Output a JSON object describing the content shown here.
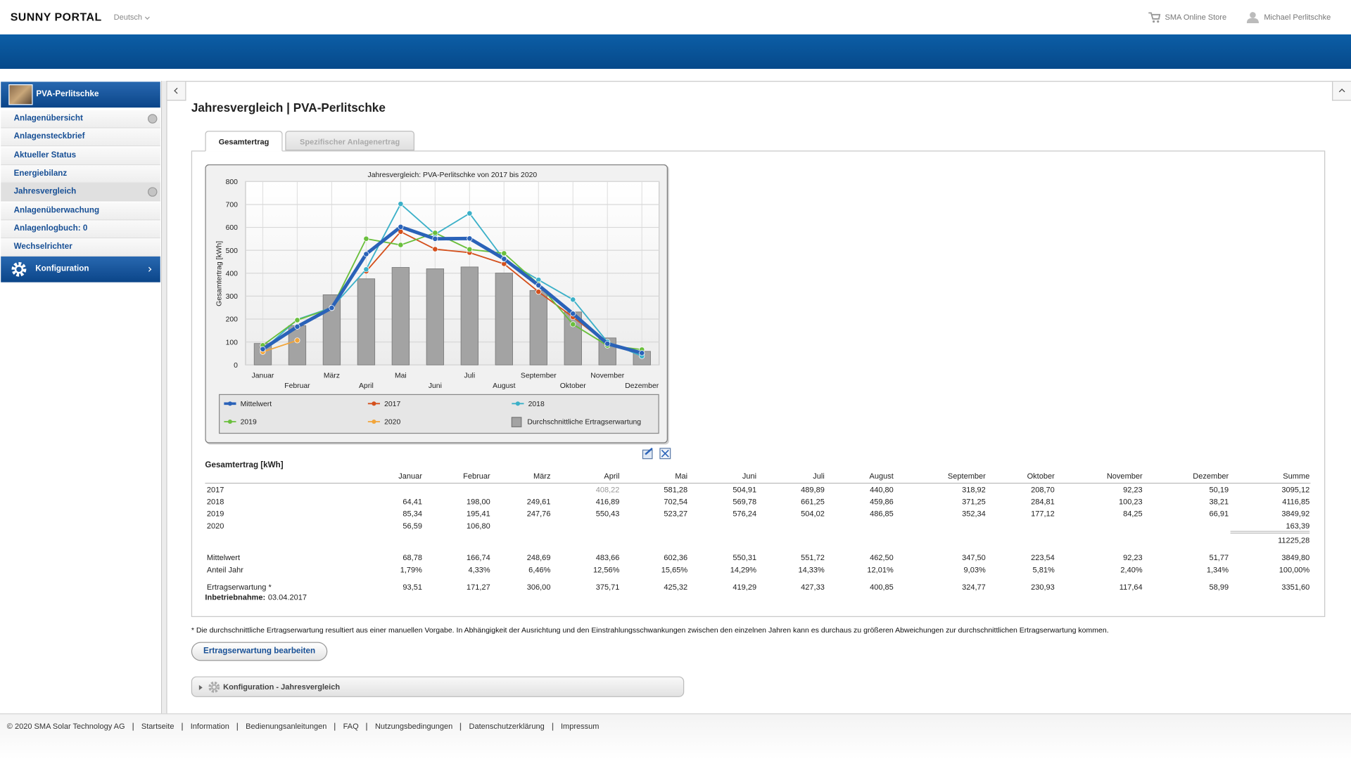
{
  "header": {
    "logo": "SUNNY PORTAL",
    "language": "Deutsch",
    "store": "SMA Online Store",
    "user": "Michael Perlitschke"
  },
  "sidebar": {
    "plant": "PVA-Perlitschke",
    "items": [
      "Anlagenübersicht",
      "Anlagensteckbrief",
      "Aktueller Status",
      "Energiebilanz",
      "Jahresvergleich",
      "Anlagenüberwachung",
      "Anlagenlogbuch: 0",
      "Wechselrichter"
    ],
    "config": "Konfiguration"
  },
  "page": {
    "title": "Jahresvergleich | PVA-Perlitschke",
    "tabs": [
      "Gesamtertrag",
      "Spezifischer Anlagenertrag"
    ]
  },
  "chart_data": {
    "type": "line",
    "title": "Jahresvergleich: PVA-Perlitschke von 2017 bis 2020",
    "y_label": "Gesamtertrag [kWh]",
    "categories": [
      "Januar",
      "Februar",
      "März",
      "April",
      "Mai",
      "Juni",
      "Juli",
      "August",
      "September",
      "Oktober",
      "November",
      "Dezember"
    ],
    "ylim": [
      0,
      800
    ],
    "yticks": [
      0,
      100,
      200,
      300,
      400,
      500,
      600,
      700,
      800
    ],
    "grid": true,
    "series": [
      {
        "name": "Mittelwert",
        "kind": "line",
        "line_width": 4,
        "color": "#2a62b8",
        "values": [
          68.78,
          166.74,
          248.69,
          483.66,
          602.36,
          550.31,
          551.72,
          462.5,
          347.5,
          223.54,
          92.23,
          51.77
        ]
      },
      {
        "name": "2017",
        "kind": "line",
        "line_width": 1.5,
        "color": "#d4501c",
        "values": [
          null,
          null,
          null,
          408.22,
          581.28,
          504.91,
          489.89,
          440.8,
          318.92,
          208.7,
          92.23,
          50.19
        ]
      },
      {
        "name": "2018",
        "kind": "line",
        "line_width": 1.5,
        "color": "#3bb0c8",
        "values": [
          64.41,
          198.0,
          249.61,
          416.89,
          702.54,
          569.78,
          661.25,
          459.86,
          371.25,
          284.81,
          100.23,
          38.21
        ]
      },
      {
        "name": "2019",
        "kind": "line",
        "line_width": 1.5,
        "color": "#6abf3c",
        "values": [
          85.34,
          195.41,
          247.76,
          550.43,
          523.27,
          576.24,
          504.02,
          486.85,
          352.34,
          177.12,
          84.25,
          66.91
        ]
      },
      {
        "name": "2020",
        "kind": "line",
        "line_width": 1.5,
        "color": "#f2a53a",
        "values": [
          56.59,
          106.8,
          null,
          null,
          null,
          null,
          null,
          null,
          null,
          null,
          null,
          null
        ]
      },
      {
        "name": "Durchschnittliche Ertragserwartung",
        "kind": "bar",
        "color": "#a3a3a3",
        "values": [
          93.51,
          171.27,
          306.0,
          375.71,
          425.32,
          419.29,
          427.33,
          400.85,
          324.77,
          230.93,
          117.64,
          58.99
        ]
      }
    ]
  },
  "table": {
    "title": "Gesamtertrag [kWh]",
    "columns": [
      "Januar",
      "Februar",
      "März",
      "April",
      "Mai",
      "Juni",
      "Juli",
      "August",
      "September",
      "Oktober",
      "November",
      "Dezember",
      "Summe"
    ],
    "rows": [
      {
        "label": "2017",
        "cells": [
          null,
          null,
          null,
          "408,22",
          "581,28",
          "504,91",
          "489,89",
          "440,80",
          "318,92",
          "208,70",
          "92,23",
          "50,19",
          "3095,12"
        ]
      },
      {
        "label": "2018",
        "cells": [
          "64,41",
          "198,00",
          "249,61",
          "416,89",
          "702,54",
          "569,78",
          "661,25",
          "459,86",
          "371,25",
          "284,81",
          "100,23",
          "38,21",
          "4116,85"
        ]
      },
      {
        "label": "2019",
        "cells": [
          "85,34",
          "195,41",
          "247,76",
          "550,43",
          "523,27",
          "576,24",
          "504,02",
          "486,85",
          "352,34",
          "177,12",
          "84,25",
          "66,91",
          "3849,92"
        ]
      },
      {
        "label": "2020",
        "cells": [
          "56,59",
          "106,80",
          null,
          null,
          null,
          null,
          null,
          null,
          null,
          null,
          null,
          null,
          "163,39"
        ]
      }
    ],
    "total": "11225,28",
    "summary": [
      {
        "label": "Mittelwert",
        "cells": [
          "68,78",
          "166,74",
          "248,69",
          "483,66",
          "602,36",
          "550,31",
          "551,72",
          "462,50",
          "347,50",
          "223,54",
          "92,23",
          "51,77",
          "3849,80"
        ]
      },
      {
        "label": "Anteil Jahr",
        "cells": [
          "1,79%",
          "4,33%",
          "6,46%",
          "12,56%",
          "15,65%",
          "14,29%",
          "14,33%",
          "12,01%",
          "9,03%",
          "5,81%",
          "2,40%",
          "1,34%",
          "100,00%"
        ]
      },
      {
        "label": "Ertragserwartung *",
        "cells": [
          "93,51",
          "171,27",
          "306,00",
          "375,71",
          "425,32",
          "419,29",
          "427,33",
          "400,85",
          "324,77",
          "230,93",
          "117,64",
          "58,99",
          "3351,60"
        ]
      }
    ],
    "commissioning": {
      "label": "Inbetriebnahme:",
      "date": "03.04.2017"
    }
  },
  "footnote": "* Die durchschnittliche Ertragserwartung resultiert aus einer manuellen Vorgabe. In Abhängigkeit der Ausrichtung und den Einstrahlungsschwankungen zwischen den einzelnen Jahren kann es durchaus zu größeren Abweichungen zur durchschnittlichen Ertragserwartung kommen.",
  "button": "Ertragserwartung bearbeiten",
  "config_panel": "Konfiguration - Jahresvergleich",
  "footer": {
    "copyright": "© 2020 SMA Solar Technology AG",
    "links": [
      "Startseite",
      "Information",
      "Bedienungsanleitungen",
      "FAQ",
      "Nutzungsbedingungen",
      "Datenschutzerklärung",
      "Impressum"
    ]
  }
}
